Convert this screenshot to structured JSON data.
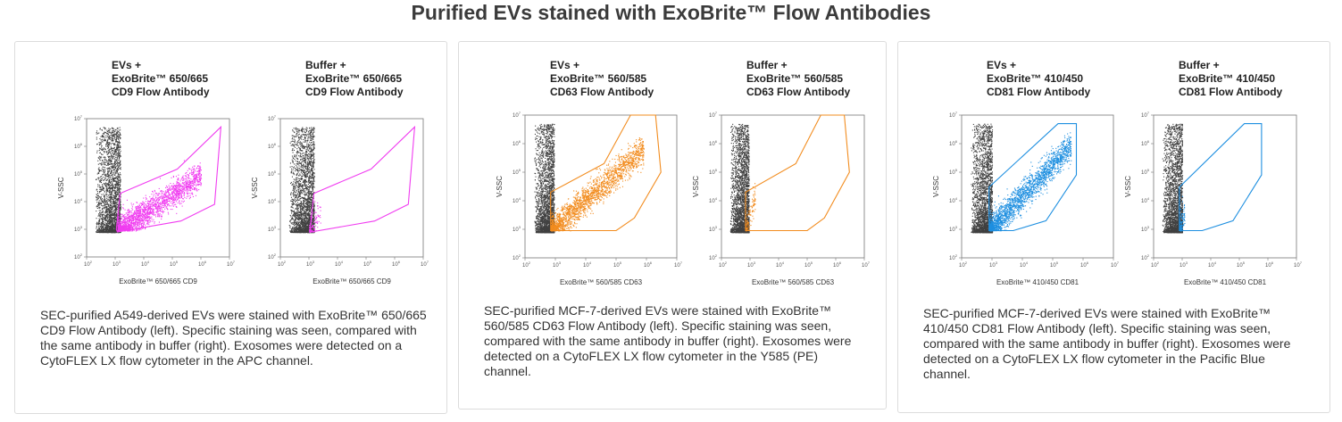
{
  "page": {
    "title": "Purified EVs stained with ExoBrite™ Flow Antibodies"
  },
  "chart_data": [
    {
      "type": "scatter",
      "panel": "EVs",
      "title_lines": [
        "EVs +",
        "ExoBrite™ 650/665",
        "CD9 Flow Antibody"
      ],
      "xlabel": "ExoBrite™ 650/665 CD9",
      "ylabel": "V-SSC",
      "xscale": "log",
      "yscale": "log",
      "xlim": [
        100,
        10000000
      ],
      "ylim": [
        100,
        10000000
      ],
      "gate_color": "#f03cf0",
      "gate_polygon": [
        [
          1100,
          1000
        ],
        [
          1500,
          20000
        ],
        [
          150000,
          150000
        ],
        [
          5000000,
          5000000
        ],
        [
          3000000,
          8000
        ],
        [
          200000,
          2000
        ],
        [
          1200,
          800
        ]
      ],
      "populations": [
        {
          "name": "",
          "color": "#404040",
          "x_range": [
            200,
            1500
          ],
          "y_range": [
            800,
            5000000
          ],
          "density": "high"
        },
        {
          "name": "",
          "color": "#f03cf0",
          "x_range": [
            1200,
            1000000
          ],
          "y_range": [
            900,
            200000
          ],
          "density": "high"
        }
      ]
    },
    {
      "type": "scatter",
      "panel": "Buffer",
      "title_lines": [
        "Buffer +",
        "ExoBrite™ 650/665",
        "CD9 Flow Antibody"
      ],
      "xlabel": "ExoBrite™ 650/665 CD9",
      "ylabel": "V-SSC",
      "xscale": "log",
      "yscale": "log",
      "xlim": [
        100,
        10000000
      ],
      "ylim": [
        100,
        10000000
      ],
      "gate_color": "#f03cf0",
      "gate_polygon": [
        [
          1100,
          1000
        ],
        [
          1500,
          20000
        ],
        [
          150000,
          150000
        ],
        [
          5000000,
          5000000
        ],
        [
          3000000,
          8000
        ],
        [
          200000,
          2000
        ],
        [
          1200,
          800
        ]
      ],
      "populations": [
        {
          "name": "",
          "color": "#404040",
          "x_range": [
            200,
            1500
          ],
          "y_range": [
            800,
            5000000
          ],
          "density": "high"
        },
        {
          "name": "",
          "color": "#f03cf0",
          "x_range": [
            1000,
            2500
          ],
          "y_range": [
            800,
            5000
          ],
          "density": "sparse"
        }
      ]
    },
    {
      "type": "scatter",
      "panel": "EVs",
      "title_lines": [
        "EVs +",
        "ExoBrite™ 560/585",
        "CD63 Flow Antibody"
      ],
      "xlabel": "ExoBrite™ 560/585 CD63",
      "ylabel": "V-SSC",
      "xscale": "log",
      "yscale": "log",
      "xlim": [
        100,
        10000000
      ],
      "ylim": [
        100,
        10000000
      ],
      "gate_color": "#f28c1e",
      "gate_polygon": [
        [
          700,
          900
        ],
        [
          700,
          20000
        ],
        [
          40000,
          200000
        ],
        [
          300000,
          10000000
        ],
        [
          2000000,
          10000000
        ],
        [
          3000000,
          100000
        ],
        [
          400000,
          2500
        ],
        [
          100000,
          900
        ]
      ],
      "populations": [
        {
          "name": "",
          "color": "#404040",
          "x_range": [
            200,
            900
          ],
          "y_range": [
            800,
            5000000
          ],
          "density": "high"
        },
        {
          "name": "",
          "color": "#f28c1e",
          "x_range": [
            700,
            800000
          ],
          "y_range": [
            900,
            2000000
          ],
          "density": "high"
        }
      ]
    },
    {
      "type": "scatter",
      "panel": "Buffer",
      "title_lines": [
        "Buffer +",
        "ExoBrite™ 560/585",
        "CD63 Flow Antibody"
      ],
      "xlabel": "ExoBrite™ 560/585 CD63",
      "ylabel": "V-SSC",
      "xscale": "log",
      "yscale": "log",
      "xlim": [
        100,
        10000000
      ],
      "ylim": [
        100,
        10000000
      ],
      "gate_color": "#f28c1e",
      "gate_polygon": [
        [
          700,
          900
        ],
        [
          700,
          20000
        ],
        [
          40000,
          200000
        ],
        [
          300000,
          10000000
        ],
        [
          2000000,
          10000000
        ],
        [
          3000000,
          100000
        ],
        [
          400000,
          2500
        ],
        [
          100000,
          900
        ]
      ],
      "populations": [
        {
          "name": "",
          "color": "#404040",
          "x_range": [
            200,
            900
          ],
          "y_range": [
            800,
            5000000
          ],
          "density": "high"
        },
        {
          "name": "",
          "color": "#f28c1e",
          "x_range": [
            700,
            1500
          ],
          "y_range": [
            900,
            30000
          ],
          "density": "sparse"
        }
      ]
    },
    {
      "type": "scatter",
      "panel": "EVs",
      "title_lines": [
        "EVs +",
        "ExoBrite™ 410/450",
        "CD81 Flow Antibody"
      ],
      "xlabel": "ExoBrite™ 410/450 CD81",
      "ylabel": "V-SSC",
      "xscale": "log",
      "yscale": "log",
      "xlim": [
        100,
        10000000
      ],
      "ylim": [
        100,
        10000000
      ],
      "gate_color": "#1e8fe0",
      "gate_polygon": [
        [
          800,
          900
        ],
        [
          800,
          30000
        ],
        [
          150000,
          5000000
        ],
        [
          600000,
          5000000
        ],
        [
          600000,
          80000
        ],
        [
          60000,
          2000
        ],
        [
          5000,
          900
        ]
      ],
      "populations": [
        {
          "name": "",
          "color": "#404040",
          "x_range": [
            200,
            1000
          ],
          "y_range": [
            800,
            5000000
          ],
          "density": "high"
        },
        {
          "name": "",
          "color": "#1e8fe0",
          "x_range": [
            800,
            400000
          ],
          "y_range": [
            900,
            3000000
          ],
          "density": "high"
        }
      ]
    },
    {
      "type": "scatter",
      "panel": "Buffer",
      "title_lines": [
        "Buffer +",
        "ExoBrite™ 410/450",
        "CD81 Flow Antibody"
      ],
      "xlabel": "ExoBrite™ 410/450 CD81",
      "ylabel": "V-SSC",
      "xscale": "log",
      "yscale": "log",
      "xlim": [
        100,
        10000000
      ],
      "ylim": [
        100,
        10000000
      ],
      "gate_color": "#1e8fe0",
      "gate_polygon": [
        [
          800,
          900
        ],
        [
          800,
          30000
        ],
        [
          150000,
          5000000
        ],
        [
          600000,
          5000000
        ],
        [
          600000,
          80000
        ],
        [
          60000,
          2000
        ],
        [
          5000,
          900
        ]
      ],
      "populations": [
        {
          "name": "",
          "color": "#404040",
          "x_range": [
            200,
            1000
          ],
          "y_range": [
            800,
            5000000
          ],
          "density": "high"
        },
        {
          "name": "",
          "color": "#1e8fe0",
          "x_range": [
            800,
            1200
          ],
          "y_range": [
            900,
            5000
          ],
          "density": "sparse"
        }
      ]
    }
  ],
  "captions": [
    "SEC-purified A549-derived EVs were stained with ExoBrite™ 650/665 CD9 Flow Antibody (left). Specific staining was seen, compared with the same antibody in buffer (right). Exosomes were detected on a CytoFLEX LX flow cytometer in the APC channel.",
    "SEC-purified MCF-7-derived EVs were stained with ExoBrite™ 560/585 CD63 Flow Antibody (left). Specific staining was seen, compared with the same antibody in buffer (right). Exosomes were detected on a CytoFLEX LX flow cytometer in the Y585 (PE) channel.",
    "SEC-purified MCF-7-derived EVs were stained with ExoBrite™ 410/450 CD81 Flow Antibody (left). Specific staining was seen, compared with the same antibody in buffer (right). Exosomes were detected on a CytoFLEX LX flow cytometer in the Pacific Blue channel."
  ],
  "tick_exponents": [
    "2",
    "3",
    "4",
    "5",
    "6",
    "7"
  ]
}
